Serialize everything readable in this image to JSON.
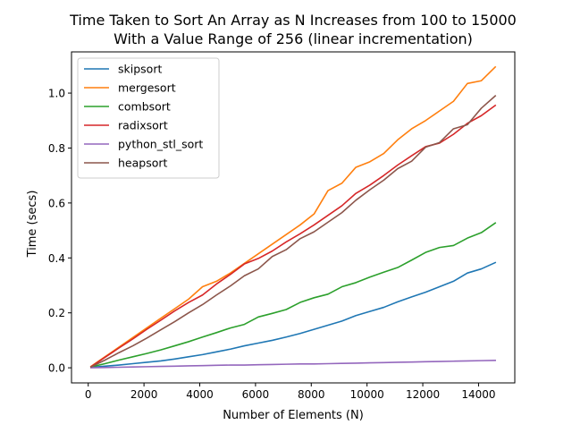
{
  "chart_data": {
    "type": "line",
    "title": [
      "Time Taken to Sort An Array as N Increases from 100 to 15000",
      "With a Value Range of 256 (linear incrementation)"
    ],
    "xlabel": "Number of Elements (N)",
    "ylabel": "Time (secs)",
    "xlim": [
      -600,
      15300
    ],
    "ylim": [
      -0.055,
      1.15
    ],
    "xticks": [
      0,
      2000,
      4000,
      6000,
      8000,
      10000,
      12000,
      14000
    ],
    "yticks": [
      0.0,
      0.2,
      0.4,
      0.6,
      0.8,
      1.0
    ],
    "xtick_labels": [
      "0",
      "2000",
      "4000",
      "6000",
      "8000",
      "10000",
      "12000",
      "14000"
    ],
    "ytick_labels": [
      "0.0",
      "0.2",
      "0.4",
      "0.6",
      "0.8",
      "1.0"
    ],
    "grid": false,
    "legend_position": "top-left",
    "x": [
      100,
      600,
      1100,
      1600,
      2100,
      2600,
      3100,
      3600,
      4100,
      4600,
      5100,
      5600,
      6100,
      6600,
      7100,
      7600,
      8100,
      8600,
      9100,
      9600,
      10100,
      10600,
      11100,
      11600,
      12100,
      12600,
      13100,
      13600,
      14100,
      14600
    ],
    "series": [
      {
        "name": "skipsort",
        "color": "#1f77b4",
        "values": [
          0.002,
          0.006,
          0.01,
          0.015,
          0.02,
          0.025,
          0.032,
          0.04,
          0.048,
          0.058,
          0.068,
          0.08,
          0.09,
          0.1,
          0.112,
          0.125,
          0.14,
          0.155,
          0.17,
          0.19,
          0.205,
          0.22,
          0.24,
          0.258,
          0.275,
          0.295,
          0.315,
          0.345,
          0.36,
          0.383
        ]
      },
      {
        "name": "mergesort",
        "color": "#ff7f0e",
        "values": [
          0.005,
          0.04,
          0.075,
          0.11,
          0.145,
          0.18,
          0.215,
          0.25,
          0.295,
          0.315,
          0.345,
          0.38,
          0.415,
          0.45,
          0.485,
          0.52,
          0.56,
          0.645,
          0.672,
          0.73,
          0.75,
          0.78,
          0.83,
          0.87,
          0.9,
          0.935,
          0.97,
          1.035,
          1.045,
          1.095
        ]
      },
      {
        "name": "combsort",
        "color": "#2ca02c",
        "values": [
          0.003,
          0.015,
          0.028,
          0.04,
          0.052,
          0.065,
          0.08,
          0.095,
          0.112,
          0.128,
          0.145,
          0.158,
          0.185,
          0.198,
          0.212,
          0.238,
          0.255,
          0.268,
          0.295,
          0.31,
          0.33,
          0.348,
          0.365,
          0.392,
          0.42,
          0.438,
          0.445,
          0.472,
          0.492,
          0.527
        ]
      },
      {
        "name": "radixsort",
        "color": "#d62728",
        "values": [
          0.004,
          0.038,
          0.072,
          0.105,
          0.14,
          0.173,
          0.207,
          0.238,
          0.265,
          0.305,
          0.34,
          0.378,
          0.398,
          0.425,
          0.458,
          0.488,
          0.52,
          0.555,
          0.59,
          0.635,
          0.665,
          0.7,
          0.738,
          0.772,
          0.805,
          0.818,
          0.85,
          0.89,
          0.918,
          0.955
        ]
      },
      {
        "name": "python_stl_sort",
        "color": "#9467bd",
        "values": [
          0.0,
          0.001,
          0.002,
          0.003,
          0.004,
          0.005,
          0.006,
          0.007,
          0.008,
          0.009,
          0.01,
          0.01,
          0.011,
          0.012,
          0.013,
          0.014,
          0.014,
          0.015,
          0.016,
          0.017,
          0.018,
          0.019,
          0.02,
          0.021,
          0.022,
          0.023,
          0.024,
          0.025,
          0.026,
          0.027
        ]
      },
      {
        "name": "heapsort",
        "color": "#8c564b",
        "values": [
          0.003,
          0.028,
          0.055,
          0.08,
          0.108,
          0.138,
          0.168,
          0.2,
          0.23,
          0.265,
          0.298,
          0.335,
          0.36,
          0.405,
          0.43,
          0.47,
          0.495,
          0.53,
          0.565,
          0.61,
          0.648,
          0.683,
          0.725,
          0.752,
          0.803,
          0.82,
          0.87,
          0.885,
          0.945,
          0.99
        ]
      }
    ]
  }
}
